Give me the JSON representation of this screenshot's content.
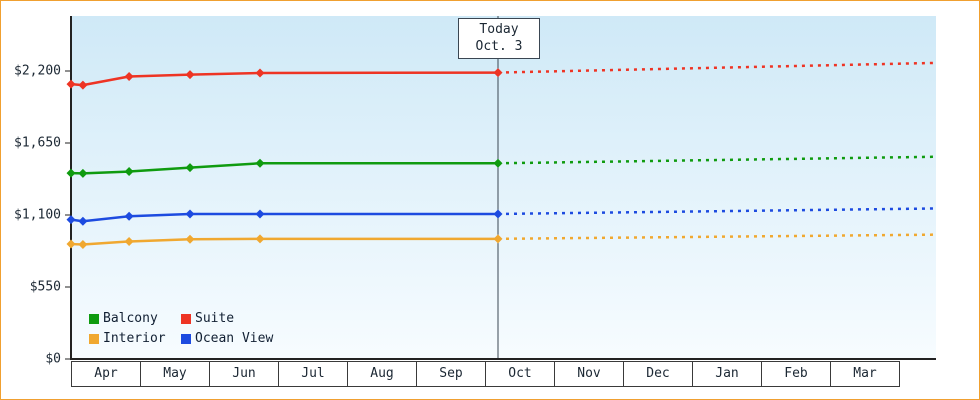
{
  "frame": {
    "border_color": "#f0a030"
  },
  "chart_data": {
    "type": "line",
    "plot_bg_top": "#cfe9f7",
    "plot_bg_bottom": "#f7fcff",
    "axis_color": "#222222",
    "today_line_color": "#3a4652",
    "y_ticks": [
      {
        "value": 0,
        "label": "$0"
      },
      {
        "value": 550,
        "label": "$550"
      },
      {
        "value": 1100,
        "label": "$1,100"
      },
      {
        "value": 1650,
        "label": "$1,650"
      },
      {
        "value": 2200,
        "label": "$2,200"
      }
    ],
    "months": [
      "Apr",
      "May",
      "Jun",
      "Jul",
      "Aug",
      "Sep",
      "Oct",
      "Nov",
      "Dec",
      "Jan",
      "Feb",
      "Mar"
    ],
    "today": {
      "line1": "Today",
      "line2": "Oct. 3",
      "month_position": 6.1
    },
    "ylim": [
      0,
      2600
    ],
    "legend_position": "bottom-left",
    "grid": false,
    "series": [
      {
        "name": "Suite",
        "color": "#ee3424",
        "points": [
          [
            0,
            2100
          ],
          [
            0.17,
            2092
          ],
          [
            0.83,
            2158
          ],
          [
            1.7,
            2172
          ],
          [
            2.7,
            2185
          ],
          [
            6.1,
            2188
          ]
        ],
        "forecast_end": 2262,
        "forecast_style": "dotted"
      },
      {
        "name": "Balcony",
        "color": "#0f9b0f",
        "points": [
          [
            0,
            1420
          ],
          [
            0.17,
            1418
          ],
          [
            0.83,
            1432
          ],
          [
            1.7,
            1462
          ],
          [
            2.7,
            1495
          ],
          [
            6.1,
            1495
          ]
        ],
        "forecast_end": 1545,
        "forecast_style": "dotted"
      },
      {
        "name": "Ocean View",
        "color": "#1d4be0",
        "points": [
          [
            0,
            1065
          ],
          [
            0.17,
            1052
          ],
          [
            0.83,
            1090
          ],
          [
            1.7,
            1108
          ],
          [
            2.7,
            1108
          ],
          [
            6.1,
            1108
          ]
        ],
        "forecast_end": 1150,
        "forecast_style": "dotted"
      },
      {
        "name": "Interior",
        "color": "#f0a830",
        "points": [
          [
            0,
            878
          ],
          [
            0.17,
            875
          ],
          [
            0.83,
            898
          ],
          [
            1.7,
            915
          ],
          [
            2.7,
            918
          ],
          [
            6.1,
            918
          ]
        ],
        "forecast_end": 950,
        "forecast_style": "dotted"
      }
    ],
    "legend": {
      "items": [
        {
          "label": "Balcony",
          "color": "#0f9b0f"
        },
        {
          "label": "Suite",
          "color": "#ee3424"
        },
        {
          "label": "Interior",
          "color": "#f0a830"
        },
        {
          "label": "Ocean View",
          "color": "#1d4be0"
        }
      ]
    }
  }
}
